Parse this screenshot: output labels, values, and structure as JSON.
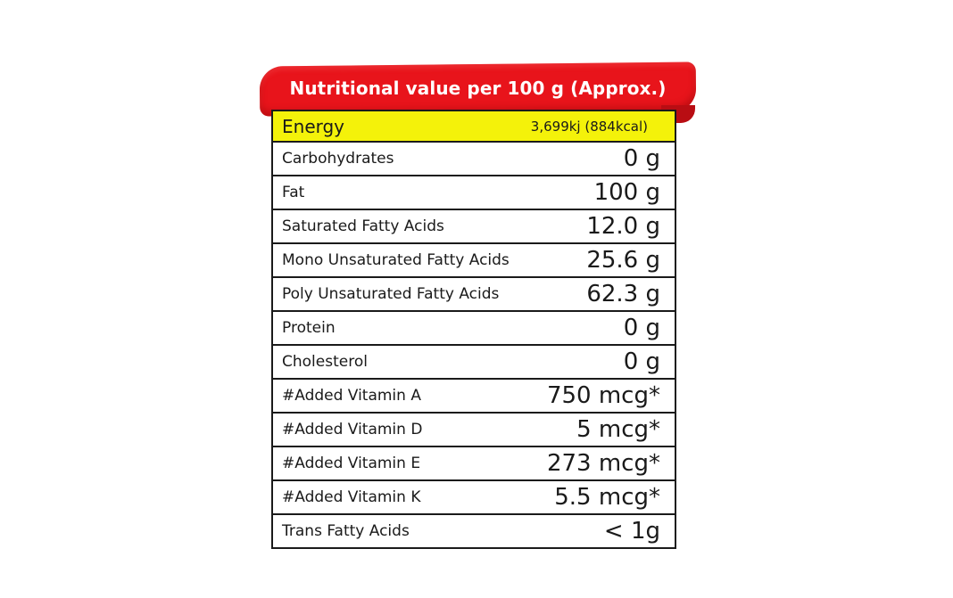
{
  "header": {
    "title": "Nutritional value per 100 g (Approx.)"
  },
  "nutrition": {
    "rows": [
      {
        "label": "Energy",
        "value": "3,699kj (884kcal)"
      },
      {
        "label": "Carbohydrates",
        "value": "0 g"
      },
      {
        "label": "Fat",
        "value": "100 g"
      },
      {
        "label": "Saturated Fatty Acids",
        "value": "12.0 g"
      },
      {
        "label": "Mono Unsaturated Fatty Acids",
        "value": "25.6 g"
      },
      {
        "label": "Poly Unsaturated Fatty Acids",
        "value": "62.3 g"
      },
      {
        "label": "Protein",
        "value": "0 g"
      },
      {
        "label": "Cholesterol",
        "value": "0 g"
      },
      {
        "label": "#Added Vitamin A",
        "value": "750 mcg*"
      },
      {
        "label": "#Added Vitamin D",
        "value": "5 mcg*"
      },
      {
        "label": "#Added Vitamin E",
        "value": "273 mcg*"
      },
      {
        "label": "#Added Vitamin K",
        "value": "5.5 mcg*"
      },
      {
        "label": "Trans Fatty Acids",
        "value": "< 1g"
      }
    ]
  },
  "colors": {
    "banner": "#e8141b",
    "energy_highlight": "#f4f20a",
    "text": "#1a1a1a"
  }
}
